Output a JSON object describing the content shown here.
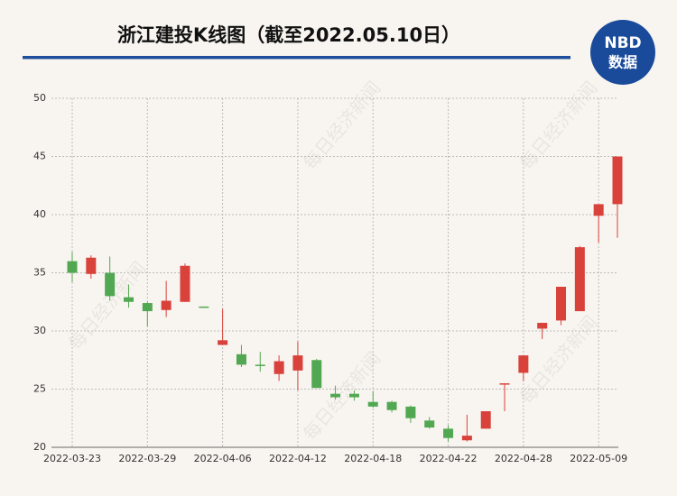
{
  "header": {
    "title": "浙江建投K线图（截至2022.05.10日）",
    "logo_top": "NBD",
    "logo_bottom": "数据"
  },
  "watermark": "每日经济新闻",
  "chart_data": {
    "type": "candlestick",
    "categories": [
      "2022-03-23",
      null,
      null,
      null,
      "2022-03-29",
      null,
      null,
      null,
      "2022-04-06",
      null,
      null,
      null,
      "2022-04-12",
      null,
      null,
      null,
      "2022-04-18",
      null,
      null,
      null,
      "2022-04-22",
      null,
      null,
      null,
      "2022-04-28",
      null,
      null,
      null,
      "2022-05-09",
      null
    ],
    "open": [
      36.0,
      34.9,
      35.0,
      32.9,
      32.4,
      31.8,
      32.5,
      32.1,
      28.8,
      28.0,
      27.1,
      26.3,
      26.6,
      27.5,
      24.6,
      24.6,
      23.9,
      23.9,
      23.5,
      22.3,
      21.6,
      20.6,
      21.6,
      25.4,
      26.4,
      30.2,
      30.9,
      31.7,
      39.9,
      40.9
    ],
    "high": [
      36.8,
      36.5,
      36.4,
      34.0,
      32.5,
      34.3,
      35.8,
      32.1,
      31.9,
      28.8,
      28.2,
      27.9,
      29.1,
      27.6,
      25.3,
      24.9,
      24.8,
      24.0,
      23.6,
      22.6,
      21.9,
      22.8,
      23.1,
      25.5,
      27.9,
      30.7,
      33.8,
      37.3,
      40.9,
      45.0
    ],
    "low": [
      34.2,
      34.5,
      32.6,
      32.0,
      30.4,
      31.2,
      32.5,
      32.0,
      28.8,
      26.9,
      26.5,
      25.7,
      24.9,
      25.1,
      24.1,
      24.0,
      23.4,
      23.0,
      22.1,
      21.6,
      20.5,
      20.5,
      21.6,
      23.1,
      25.7,
      29.3,
      30.5,
      31.7,
      37.6,
      38.0
    ],
    "close": [
      35.0,
      36.3,
      33.0,
      32.5,
      31.7,
      32.6,
      35.6,
      32.0,
      29.2,
      27.1,
      27.0,
      27.4,
      27.9,
      25.1,
      24.3,
      24.3,
      23.5,
      23.2,
      22.5,
      21.7,
      20.8,
      21.0,
      23.1,
      25.5,
      27.9,
      30.7,
      33.8,
      37.2,
      40.9,
      45.0
    ],
    "up_color": "#d9413b",
    "down_color": "#52a852",
    "ylim": [
      20,
      50
    ],
    "yticks": [
      20,
      25,
      30,
      35,
      40,
      45,
      50
    ],
    "grid": true
  }
}
